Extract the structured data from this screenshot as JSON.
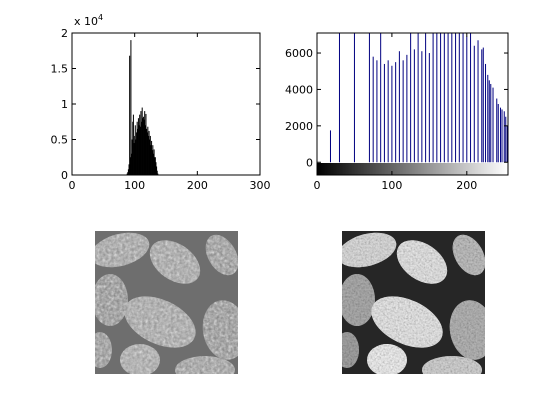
{
  "figure": {
    "background": "#ffffff"
  },
  "chart_data": [
    {
      "type": "bar",
      "title": "",
      "xlabel": "",
      "ylabel": "",
      "xlim": [
        0,
        300
      ],
      "ylim": [
        0,
        20000
      ],
      "x_ticks": [
        "0",
        "100",
        "200",
        "300"
      ],
      "y_ticks": [
        "0",
        "0.5",
        "1",
        "1.5",
        "2"
      ],
      "y_exponent_label": "x 10",
      "y_exponent_power": "4",
      "bar_color": "#000000",
      "x": [
        88,
        89,
        90,
        91,
        92,
        93,
        94,
        95,
        96,
        97,
        98,
        99,
        100,
        101,
        102,
        103,
        104,
        105,
        106,
        107,
        108,
        109,
        110,
        111,
        112,
        113,
        114,
        115,
        116,
        117,
        118,
        119,
        120,
        121,
        122,
        123,
        124,
        125,
        126,
        127,
        128,
        129,
        130,
        131,
        132,
        133,
        134,
        135,
        136,
        137
      ],
      "values": [
        200,
        400,
        800,
        1500,
        16800,
        2500,
        19000,
        3000,
        5000,
        7500,
        8500,
        4500,
        5500,
        7000,
        5000,
        6000,
        7500,
        6500,
        8000,
        7000,
        8500,
        6800,
        9000,
        7500,
        9500,
        8000,
        8200,
        7800,
        9000,
        7000,
        8600,
        6500,
        6000,
        6800,
        5500,
        6200,
        5000,
        5500,
        4200,
        4800,
        3500,
        4200,
        3000,
        3600,
        2500,
        2500,
        1800,
        1200,
        600,
        200
      ]
    },
    {
      "type": "bar",
      "title": "",
      "xlabel": "",
      "ylabel": "",
      "xlim": [
        0,
        255
      ],
      "ylim": [
        -700,
        7100
      ],
      "x_ticks": [
        "0",
        "100",
        "200"
      ],
      "y_ticks": [
        "0",
        "2000",
        "4000",
        "6000"
      ],
      "bar_color": "#000080",
      "colorbar": "grayscale",
      "x": [
        18,
        30,
        50,
        70,
        75,
        80,
        85,
        90,
        95,
        100,
        105,
        110,
        115,
        120,
        125,
        130,
        135,
        140,
        145,
        150,
        155,
        160,
        165,
        170,
        175,
        180,
        185,
        190,
        195,
        200,
        205,
        210,
        215,
        220,
        222,
        225,
        228,
        230,
        232,
        235,
        240,
        242,
        245,
        247,
        250,
        252,
        254
      ],
      "values": [
        1750,
        7100,
        7100,
        7100,
        5800,
        5600,
        7100,
        5400,
        5600,
        5300,
        5500,
        6100,
        5600,
        5900,
        7100,
        6200,
        7100,
        6100,
        7100,
        6000,
        7100,
        7100,
        7100,
        7100,
        7100,
        7100,
        7100,
        7100,
        7100,
        6900,
        7100,
        6400,
        6700,
        6200,
        6300,
        5400,
        4800,
        4500,
        4300,
        4100,
        3500,
        3200,
        3000,
        2900,
        2800,
        2500,
        2000
      ]
    }
  ],
  "images": [
    {
      "name": "pollen-low-contrast",
      "style": "low-contrast grayscale micrograph"
    },
    {
      "name": "pollen-equalized",
      "style": "high-contrast grayscale micrograph"
    }
  ]
}
